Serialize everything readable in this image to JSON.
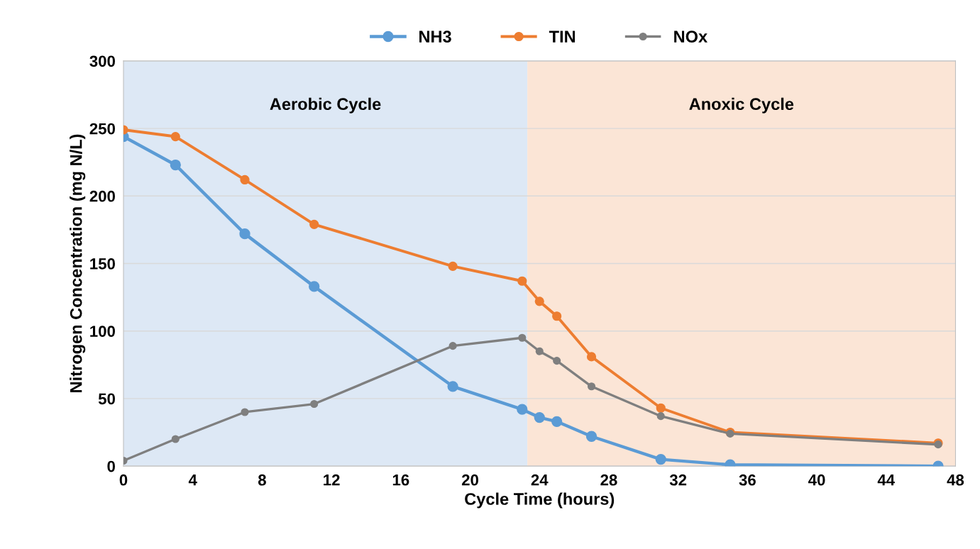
{
  "chart_data": {
    "type": "line",
    "xlabel": "Cycle Time (hours)",
    "ylabel": "Nitrogen Concentration (mg N/L)",
    "x": [
      0,
      3,
      7,
      11,
      19,
      23,
      24,
      25,
      27,
      31,
      35,
      47
    ],
    "series": [
      {
        "name": "NH3",
        "color": "#5b9bd5",
        "values": [
          244,
          223,
          172,
          133,
          59,
          42,
          36,
          33,
          22,
          5,
          1,
          0
        ]
      },
      {
        "name": "TIN",
        "color": "#ed7d31",
        "values": [
          249,
          244,
          212,
          179,
          148,
          137,
          122,
          111,
          81,
          43,
          25,
          17
        ]
      },
      {
        "name": "NOx",
        "color": "#7f7f7f",
        "values": [
          4,
          20,
          40,
          46,
          89,
          95,
          85,
          78,
          59,
          37,
          24,
          16
        ]
      }
    ],
    "bands": [
      {
        "axis": "x",
        "from": 0,
        "to": 23.3,
        "label": "Aerobic Cycle",
        "color": "#dde8f5"
      },
      {
        "axis": "x",
        "from": 23.3,
        "to": 48,
        "label": "Anoxic Cycle",
        "color": "#fbe5d6"
      }
    ],
    "xlim": [
      0,
      48
    ],
    "xticks": [
      0,
      4,
      8,
      12,
      16,
      20,
      24,
      28,
      32,
      36,
      40,
      44,
      48
    ],
    "ylim": [
      0,
      300
    ],
    "yticks": [
      0,
      50,
      100,
      150,
      200,
      250,
      300
    ],
    "grid": "y",
    "legend": "top",
    "marker": "circle",
    "line_style": "solid"
  }
}
